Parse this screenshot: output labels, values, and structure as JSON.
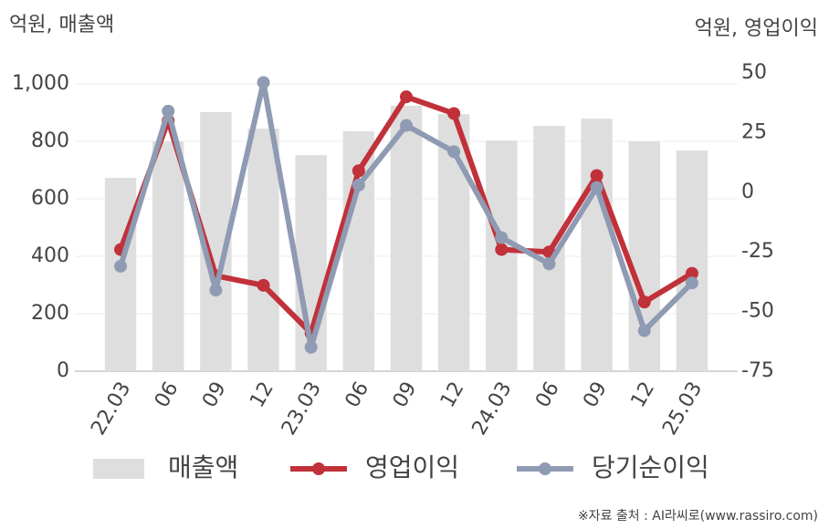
{
  "chart_data": {
    "type": "bar",
    "y_label": "억원, 매출액",
    "y2_label": "억원, 영업이익",
    "source": "※자료 출처 : AI라씨로(www.rassiro.com)",
    "categories": [
      "22.03",
      "06",
      "09",
      "12",
      "23.03",
      "06",
      "09",
      "12",
      "24.03",
      "06",
      "09",
      "12",
      "25.03"
    ],
    "series": [
      {
        "name": "매출액",
        "type": "bar",
        "color": "#dedede",
        "axis": "y",
        "values": [
          673,
          800,
          902,
          844,
          752,
          835,
          924,
          895,
          803,
          854,
          879,
          800,
          768
        ]
      },
      {
        "name": "영업이익",
        "type": "line",
        "color": "#c1313a",
        "axis": "y2",
        "values": [
          -24,
          30,
          -35,
          -39,
          -59,
          9,
          40,
          33,
          -24,
          -25,
          7,
          -46,
          -34
        ]
      },
      {
        "name": "당기순이익",
        "type": "line",
        "color": "#8f9bb3",
        "axis": "y2",
        "values": [
          -31,
          34,
          -41,
          46,
          -65,
          3,
          28,
          17,
          -19,
          -30,
          2,
          -58,
          -38
        ]
      }
    ],
    "ylim": [
      0,
      1000
    ],
    "yticks": [
      0,
      200,
      400,
      600,
      800,
      {
        "value": 1000,
        "label": "1,000"
      }
    ],
    "y2lim": [
      -75,
      50
    ],
    "y2ticks": [
      -75,
      -50,
      -25,
      0,
      25,
      50
    ],
    "grid": true
  }
}
